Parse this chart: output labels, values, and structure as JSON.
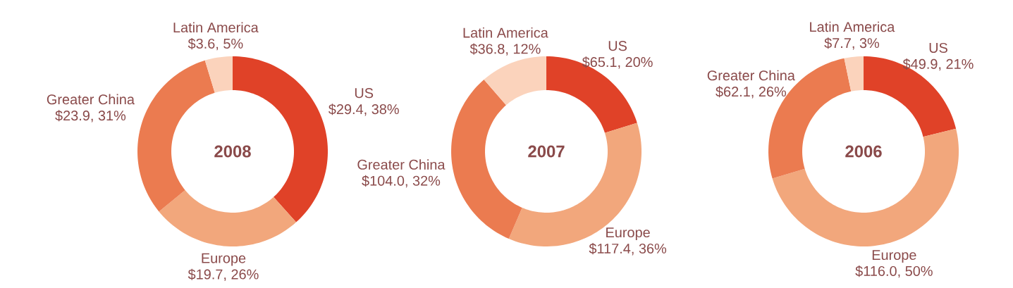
{
  "chart_data": [
    {
      "type": "donut",
      "title": "2008",
      "categories": [
        "US",
        "Europe",
        "Greater China",
        "Latin America"
      ],
      "values": [
        29.4,
        19.7,
        23.9,
        3.6
      ],
      "value_labels": [
        "$29.4, 38%",
        "$19.7, 26%",
        "$23.9, 31%",
        "$3.6, 5%"
      ],
      "colors": [
        "#e04228",
        "#f2a77c",
        "#eb7b50",
        "#fbd3bc"
      ]
    },
    {
      "type": "donut",
      "title": "2007",
      "categories": [
        "US",
        "Europe",
        "Greater China",
        "Latin America"
      ],
      "values": [
        65.1,
        117.4,
        104.0,
        36.8
      ],
      "value_labels": [
        "$65.1, 20%",
        "$117.4, 36%",
        "$104.0, 32%",
        "$36.8, 12%"
      ],
      "colors": [
        "#e04228",
        "#f2a77c",
        "#eb7b50",
        "#fbd3bc"
      ]
    },
    {
      "type": "donut",
      "title": "2006",
      "categories": [
        "US",
        "Europe",
        "Greater China",
        "Latin America"
      ],
      "values": [
        49.9,
        116.0,
        62.1,
        7.7
      ],
      "value_labels": [
        "$49.9, 21%",
        "$116.0, 50%",
        "$62.1, 26%",
        "$7.7, 3%"
      ],
      "colors": [
        "#e04228",
        "#f2a77c",
        "#eb7b50",
        "#fbd3bc"
      ]
    }
  ]
}
